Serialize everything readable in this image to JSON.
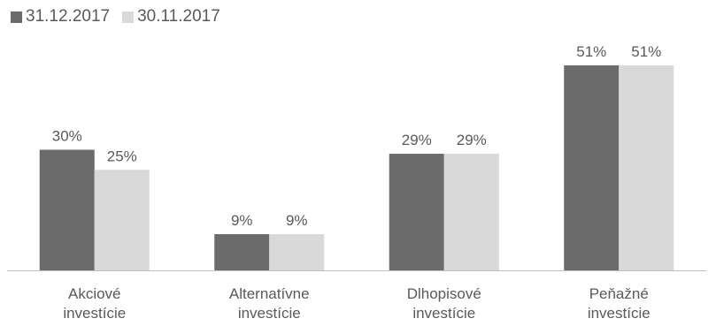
{
  "chart_data": {
    "type": "bar",
    "categories": [
      [
        "Akciové",
        "investície"
      ],
      [
        "Alternatívne",
        "investície"
      ],
      [
        "Dlhopisové",
        "investície"
      ],
      [
        "Peňažné",
        "investície"
      ]
    ],
    "series": [
      {
        "name": "31.12.2017",
        "color": "#6b6b6b",
        "values": [
          30,
          9,
          29,
          51
        ],
        "labels": [
          "30%",
          "9%",
          "29%",
          "51%"
        ]
      },
      {
        "name": "30.11.2017",
        "color": "#d9d9d9",
        "values": [
          25,
          9,
          29,
          51
        ],
        "labels": [
          "25%",
          "9%",
          "29%",
          "51%"
        ]
      }
    ],
    "ylim": [
      0,
      60
    ],
    "grid": false,
    "legend_position": "top-left",
    "title": "",
    "xlabel": "",
    "ylabel": ""
  }
}
